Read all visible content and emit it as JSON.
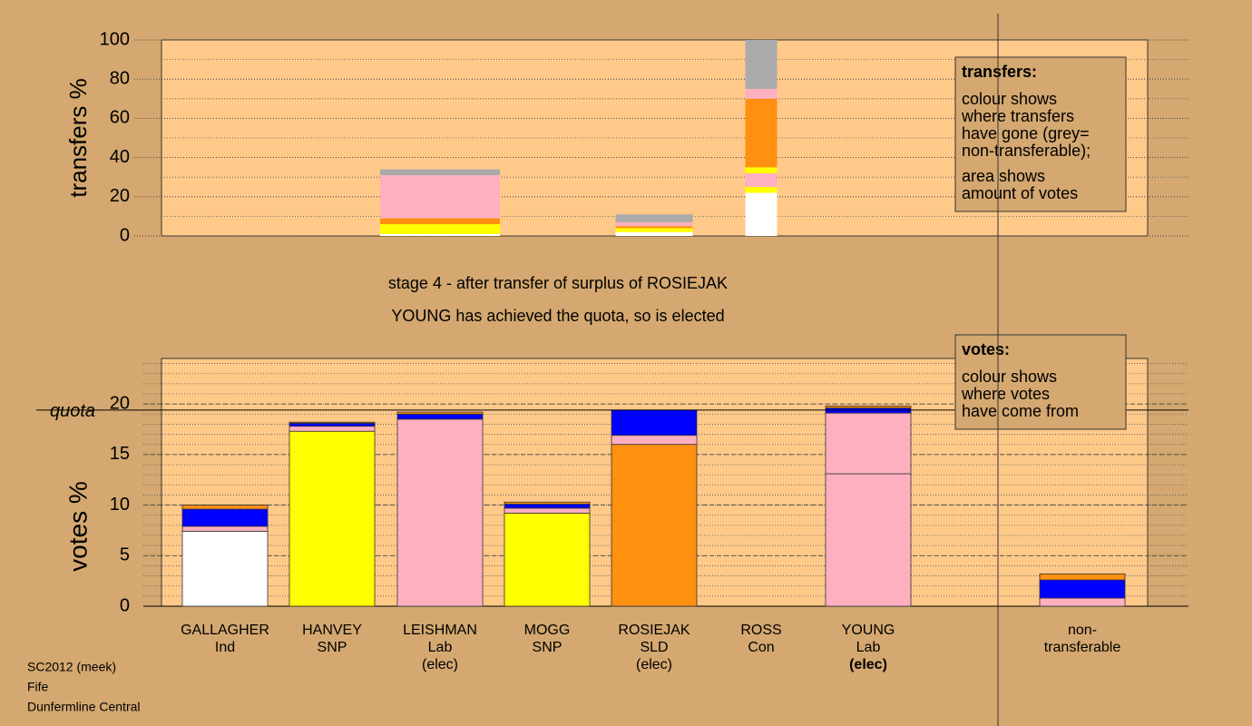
{
  "chart_data": [
    {
      "type": "stacked-bar",
      "y_label": "transfers %",
      "ylim": [
        0,
        100
      ],
      "yticks": [
        0,
        20,
        40,
        60,
        80,
        100
      ],
      "minor_step": 10,
      "stacks": [
        null,
        null,
        [
          {
            "color": "#ffffff",
            "value": 1
          },
          {
            "color": "#ffff00",
            "value": 5
          },
          {
            "color": "#ff9010",
            "value": 3
          },
          {
            "color": "#ffb0c0",
            "value": 22
          },
          {
            "color": "#aaaaaa",
            "value": 3
          }
        ],
        null,
        [
          {
            "color": "#ffffff",
            "value": 2
          },
          {
            "color": "#ffff00",
            "value": 2
          },
          {
            "color": "#ff9010",
            "value": 1
          },
          {
            "color": "#ffb0c0",
            "value": 2
          },
          {
            "color": "#aaaaaa",
            "value": 4
          }
        ],
        [
          {
            "color": "#ffffff",
            "value": 22
          },
          {
            "color": "#ffff00",
            "value": 3
          },
          {
            "color": "#ffb0c0",
            "value": 7
          },
          {
            "color": "#ffff00",
            "value": 3
          },
          {
            "color": "#ff9010",
            "value": 35
          },
          {
            "color": "#ffb0c0",
            "value": 5
          },
          {
            "color": "#aaaaaa",
            "value": 25
          }
        ],
        null,
        null
      ],
      "legend": {
        "title": "transfers:",
        "paragraphs": [
          [
            "colour shows",
            "where transfers",
            "have gone (grey=",
            "non-transferable);"
          ],
          [
            "area shows",
            "amount of votes"
          ]
        ]
      }
    },
    {
      "type": "stacked-bar",
      "y_label": "votes %",
      "ylim": [
        0,
        24.5
      ],
      "yticks": [
        0,
        5,
        10,
        15,
        20
      ],
      "minor_step": 1,
      "quota": 19.4,
      "quota_label": "quota",
      "highlight_category": 6,
      "categories": [
        [
          "GALLAGHER",
          "Ind"
        ],
        [
          "HANVEY",
          "SNP"
        ],
        [
          "LEISHMAN",
          "Lab",
          "(elec)"
        ],
        [
          "MOGG",
          "SNP"
        ],
        [
          "ROSIEJAK",
          "SLD",
          "(elec)"
        ],
        [
          "ROSS",
          "Con"
        ],
        [
          "YOUNG",
          "Lab",
          "(elec)"
        ],
        [
          "non-",
          "transferable"
        ]
      ],
      "stacks": [
        [
          {
            "color": "#ffffff",
            "value": 7.4
          },
          {
            "color": "#ffb0c0",
            "value": 0.5
          },
          {
            "color": "#0000ff",
            "value": 1.7
          },
          {
            "color": "#ff9010",
            "value": 0.4
          }
        ],
        [
          {
            "color": "#ffff00",
            "value": 17.3
          },
          {
            "color": "#ffb0c0",
            "value": 0.5
          },
          {
            "color": "#0000ff",
            "value": 0.3
          },
          {
            "color": "#ff9010",
            "value": 0.1
          }
        ],
        [
          {
            "color": "#ffb0c0",
            "value": 18.5
          },
          {
            "color": "#0000ff",
            "value": 0.5
          },
          {
            "color": "#ff9010",
            "value": 0.2
          }
        ],
        [
          {
            "color": "#ffff00",
            "value": 9.2
          },
          {
            "color": "#ffb0c0",
            "value": 0.5
          },
          {
            "color": "#0000ff",
            "value": 0.4
          },
          {
            "color": "#ff9010",
            "value": 0.2
          }
        ],
        [
          {
            "color": "#ff9010",
            "value": 16.0
          },
          {
            "color": "#ffb0c0",
            "value": 0.9
          },
          {
            "color": "#0000ff",
            "value": 2.5
          }
        ],
        [
          {
            "color": "#ffb0c0",
            "value": 0
          }
        ],
        [
          {
            "color": "#ffb0c0",
            "value": 13.1
          },
          {
            "color": "#ffb0c0",
            "value": 6.0
          },
          {
            "color": "#0000ff",
            "value": 0.5
          },
          {
            "color": "#ff9010",
            "value": 0.2
          }
        ],
        [
          {
            "color": "#ffb0c0",
            "value": 0.8
          },
          {
            "color": "#0000ff",
            "value": 1.8
          },
          {
            "color": "#ff9010",
            "value": 0.6
          }
        ]
      ],
      "legend": {
        "title": "votes:",
        "paragraphs": [
          [
            "colour shows",
            "where votes",
            "have come from"
          ]
        ]
      }
    }
  ],
  "stage_text": [
    "stage 4 - after transfer of surplus of ROSIEJAK",
    "YOUNG has achieved the quota, so is elected"
  ],
  "footer": [
    "SC2012 (meek)",
    "Fife",
    "Dunfermline Central"
  ]
}
